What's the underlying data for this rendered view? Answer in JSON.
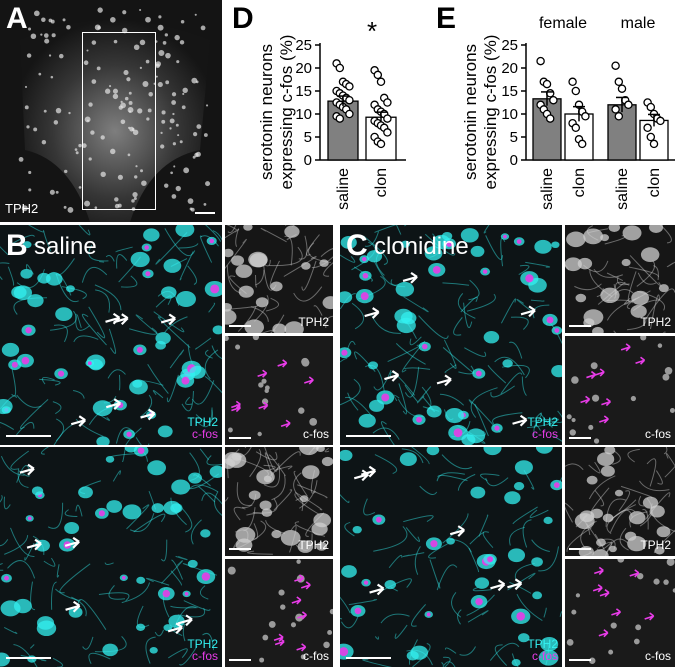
{
  "panel_a": {
    "letter": "A",
    "channel": "TPH2"
  },
  "panel_b": {
    "letter": "B",
    "title": "saline",
    "merge_ch1": "TPH2",
    "merge_ch2": "c-fos",
    "side_tph2": "TPH2",
    "side_cfos": "c-fos"
  },
  "panel_c": {
    "letter": "C",
    "title": "clonidine",
    "merge_ch1": "TPH2",
    "merge_ch2": "c-fos",
    "side_tph2": "TPH2",
    "side_cfos": "c-fos"
  },
  "panel_d": {
    "letter": "D",
    "ylabel_line1": "serotonin neurons",
    "ylabel_line2": "expressing c-fos (%)",
    "sig": "*"
  },
  "panel_e": {
    "letter": "E",
    "ylabel_line1": "serotonin neurons",
    "ylabel_line2": "expressing c-fos (%)",
    "group1": "female",
    "group2": "male"
  },
  "colors": {
    "tph2": "#33f0f0",
    "cfos": "#e83ce8",
    "saline_bar": "#808080",
    "clon_bar": "#ffffff"
  },
  "chart_data": [
    {
      "type": "bar",
      "panel": "D",
      "categories": [
        "saline",
        "clon"
      ],
      "values": [
        12.8,
        9.3
      ],
      "errors": [
        1.1,
        1.1
      ],
      "ylim": [
        0,
        25
      ],
      "yticks": [
        0,
        5,
        10,
        15,
        20,
        25
      ],
      "ylabel": "serotonin neurons expressing c-fos (%)",
      "annotation": "*",
      "points": [
        [
          21,
          20,
          17,
          16.5,
          16,
          15,
          14.5,
          14,
          13.5,
          13,
          12.5,
          12,
          11.5,
          11,
          10,
          9.5,
          9
        ],
        [
          19.5,
          18.5,
          17,
          13.5,
          12.5,
          12,
          11,
          10.5,
          10,
          9,
          8.5,
          8,
          7.5,
          7,
          6,
          5,
          4,
          3.5
        ]
      ]
    },
    {
      "type": "bar",
      "panel": "E",
      "categories": [
        "saline",
        "clon",
        "saline",
        "clon"
      ],
      "groups": [
        "female",
        "female",
        "male",
        "male"
      ],
      "values": [
        13.3,
        10.0,
        12.0,
        8.6
      ],
      "errors": [
        1.5,
        1.6,
        1.6,
        1.3
      ],
      "ylim": [
        0,
        25
      ],
      "yticks": [
        0,
        5,
        10,
        15,
        20,
        25
      ],
      "ylabel": "serotonin neurons expressing c-fos (%)",
      "points": [
        [
          21.5,
          17,
          16.5,
          14.5,
          13,
          12,
          11,
          10,
          9
        ],
        [
          17,
          15,
          12,
          10.5,
          9.5,
          8,
          7,
          4.5,
          3.5
        ],
        [
          20.5,
          17,
          15.5,
          13,
          12,
          11,
          9.5
        ],
        [
          12.5,
          11.5,
          10,
          9,
          8.5,
          7,
          5,
          3.5
        ]
      ]
    }
  ]
}
